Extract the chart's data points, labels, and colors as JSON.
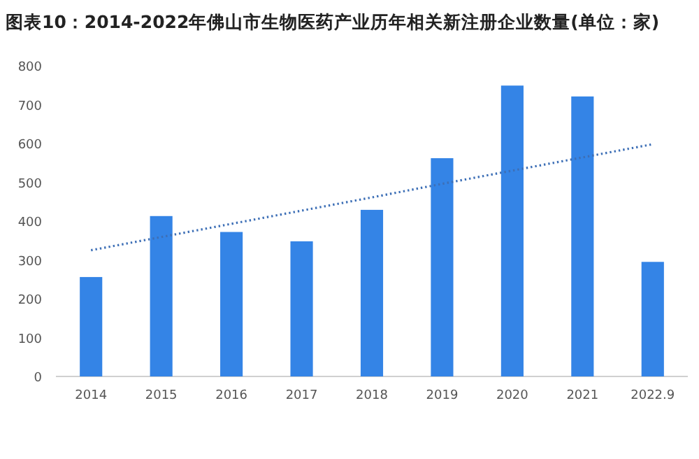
{
  "chart_data": {
    "type": "bar",
    "title": "图表10：2014-2022年佛山市生物医药产业历年相关新注册企业数量(单位：家)",
    "categories": [
      "2014",
      "2015",
      "2016",
      "2017",
      "2018",
      "2019",
      "2020",
      "2021",
      "2022.9"
    ],
    "series": [
      {
        "color": "#3484e6",
        "values": [
          256,
          413,
          372,
          348,
          429,
          562,
          749,
          721,
          295
        ]
      },
      {
        "type": "line",
        "color": "#3d6fb6",
        "line_style": "dotted",
        "values": [
          325,
          359,
          393,
          427,
          461,
          496,
          530,
          564,
          598
        ]
      }
    ],
    "ylim": [
      0,
      800
    ],
    "yticks": [
      0,
      100,
      200,
      300,
      400,
      500,
      600,
      700,
      800
    ],
    "grid": false
  }
}
